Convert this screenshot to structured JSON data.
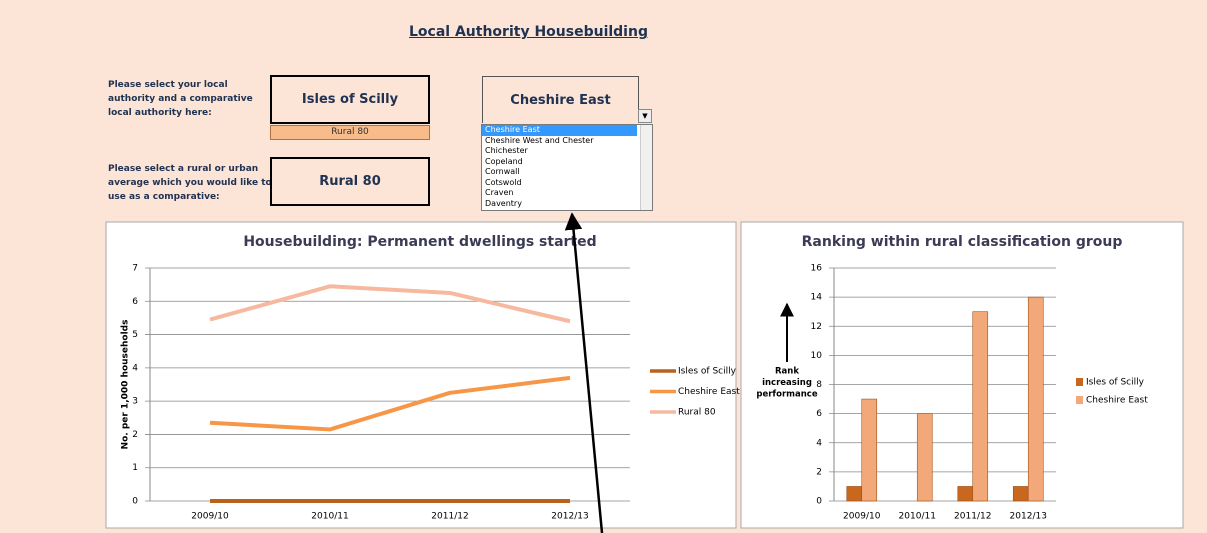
{
  "header": {
    "title": "Local Authority Housebuilding"
  },
  "controls": {
    "authority_prompt": "Please select your local authority and a comparative local authority here:",
    "authority": "Isles of Scilly",
    "authority_class": "Rural 80",
    "comparator": "Cheshire East",
    "average_prompt": "Please select a rural or urban average which you would like to use as a comparative:",
    "average": "Rural 80",
    "dropdown_items": [
      "Cheshire East",
      "Cheshire West and Chester",
      "Chichester",
      "Copeland",
      "Cornwall",
      "Cotswold",
      "Craven",
      "Daventry"
    ]
  },
  "chart_data": [
    {
      "type": "line",
      "title": "Housebuilding: Permanent dwellings started",
      "y_label": "No. per 1,000 households",
      "categories": [
        "2009/10",
        "2010/11",
        "2011/12",
        "2012/13"
      ],
      "series": [
        {
          "name": "Isles of Scilly",
          "color": "#b8621b",
          "values": [
            0,
            0,
            0,
            0
          ]
        },
        {
          "name": "Cheshire East",
          "color": "#f79646",
          "values": [
            2.35,
            2.15,
            3.25,
            3.7
          ]
        },
        {
          "name": "Rural 80",
          "color": "#f6b9a0",
          "values": [
            5.45,
            6.45,
            6.25,
            5.4
          ]
        }
      ],
      "ylim": [
        0,
        7
      ],
      "yticks": [
        0,
        1,
        2,
        3,
        4,
        5,
        6,
        7
      ],
      "grid": true,
      "legend": "right"
    },
    {
      "type": "bar",
      "title": "Ranking within rural classification group",
      "annotation": [
        "Rank",
        "increasing",
        "performance"
      ],
      "categories": [
        "2009/10",
        "2010/11",
        "2011/12",
        "2012/13"
      ],
      "series": [
        {
          "name": "Isles of Scilly",
          "color": "#c8681f",
          "values": [
            1,
            null,
            1,
            1
          ]
        },
        {
          "name": "Cheshire East",
          "color": "#f2a878",
          "values": [
            7,
            6,
            13,
            14
          ]
        }
      ],
      "ylim": [
        0,
        16
      ],
      "yticks": [
        0,
        2,
        4,
        6,
        8,
        10,
        12,
        14,
        16
      ],
      "grid": true,
      "legend": "right"
    }
  ]
}
